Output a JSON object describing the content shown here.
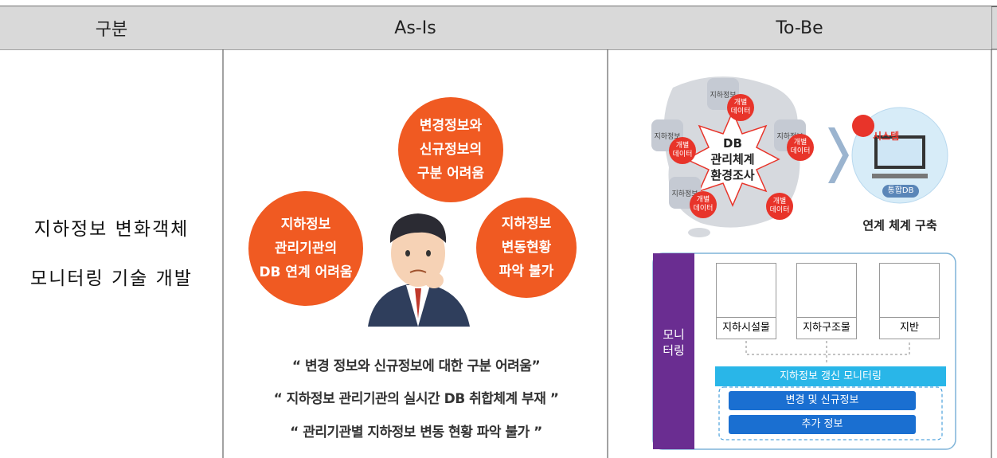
{
  "table": {
    "headers": [
      "구분",
      "As-Is",
      "To-Be"
    ],
    "rows": [
      {
        "category": [
          "지하정보 변화객체",
          "모니터링 기술 개발"
        ],
        "as_is": {
          "bubbles": [
            [
              "변경정보와",
              "신규정보의",
              "구분 어려움"
            ],
            [
              "지하정보",
              "관리기관의",
              "DB 연계 어려움"
            ],
            [
              "지하정보",
              "변동현황",
              "파악 불가"
            ]
          ],
          "quotes": [
            "“ 변경 정보와 신규정보에 대한 구분 어려움”",
            "“ 지하정보 관리기관의 실시간 DB 취합체계 부재 ”",
            "“ 관리기관별 지하정보 변동 현황 파악 불가 ”"
          ]
        },
        "to_be": {
          "hub": [
            "DB",
            "관리체계",
            "환경조사"
          ],
          "nodes": [
            "지하정보",
            "지하정보",
            "지하정보",
            "지하정보"
          ],
          "data_tags": [
            [
              "개별",
              "데이터"
            ],
            [
              "개별",
              "데이터"
            ],
            [
              "개별",
              "데이터"
            ],
            [
              "개별",
              "데이터"
            ],
            [
              "개별",
              "데이터"
            ]
          ],
          "system": "시스템",
          "integrated_db": "통합DB",
          "link_caption": "연계 체계 구축",
          "monitor_label": [
            "모니",
            "터링"
          ],
          "sources": [
            "지하시설물",
            "지하구조물",
            "지반"
          ],
          "update_bar": "지하정보 갱신 모니터링",
          "outputs": [
            "변경 및 신규정보",
            "추가 정보"
          ]
        }
      }
    ]
  }
}
